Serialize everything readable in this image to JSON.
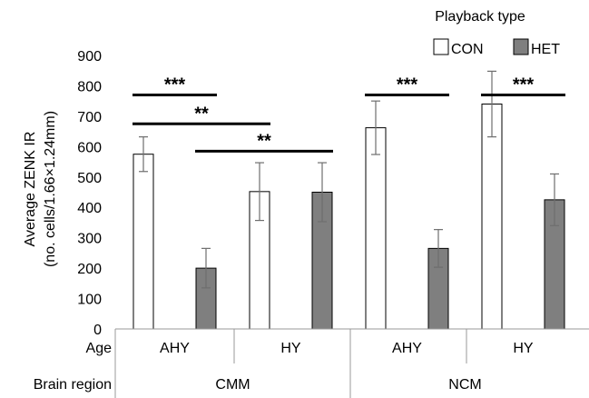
{
  "chart_data": {
    "type": "bar",
    "ylabel_line1": "Average ZENK IR",
    "ylabel_line2": "(no. cells/1.66×1.24mm)",
    "ylim": [
      0,
      900
    ],
    "yticks": [
      "0",
      "100",
      "200",
      "300",
      "400",
      "500",
      "600",
      "700",
      "800",
      "900"
    ],
    "legend": {
      "title": "Playback type",
      "position": "top-right",
      "entries": [
        {
          "name": "CON",
          "color": "#ffffff"
        },
        {
          "name": "HET",
          "color": "#7f7f7f"
        }
      ]
    },
    "row_labels": {
      "age": "Age",
      "region": "Brain region"
    },
    "regions": [
      "CMM",
      "NCM"
    ],
    "groups": [
      {
        "age": "AHY",
        "region": "CMM",
        "con": {
          "mean": 575,
          "err": 57
        },
        "het": {
          "mean": 200,
          "err": 65
        }
      },
      {
        "age": "HY",
        "region": "CMM",
        "con": {
          "mean": 452,
          "err": 95
        },
        "het": {
          "mean": 450,
          "err": 97
        }
      },
      {
        "age": "AHY",
        "region": "NCM",
        "con": {
          "mean": 662,
          "err": 88
        },
        "het": {
          "mean": 265,
          "err": 62
        }
      },
      {
        "age": "HY",
        "region": "NCM",
        "con": {
          "mean": 740,
          "err": 108
        },
        "het": {
          "mean": 425,
          "err": 85
        }
      }
    ],
    "significance": [
      {
        "label": "***",
        "from": "g0-con",
        "to": "g0-het",
        "level": 770
      },
      {
        "label": "**",
        "from": "g0-con",
        "to": "g1-con",
        "level": 675
      },
      {
        "label": "**",
        "from": "g0-het",
        "to": "g1-het",
        "level": 585
      },
      {
        "label": "***",
        "from": "g2-con",
        "to": "g2-het",
        "level": 770
      },
      {
        "label": "***",
        "from": "g3-con",
        "to": "g3-het",
        "level": 770
      }
    ],
    "colors": {
      "con_fill": "#ffffff",
      "het_fill": "#7f7f7f",
      "stroke": "#000000",
      "error": "#6e6e6e"
    }
  }
}
